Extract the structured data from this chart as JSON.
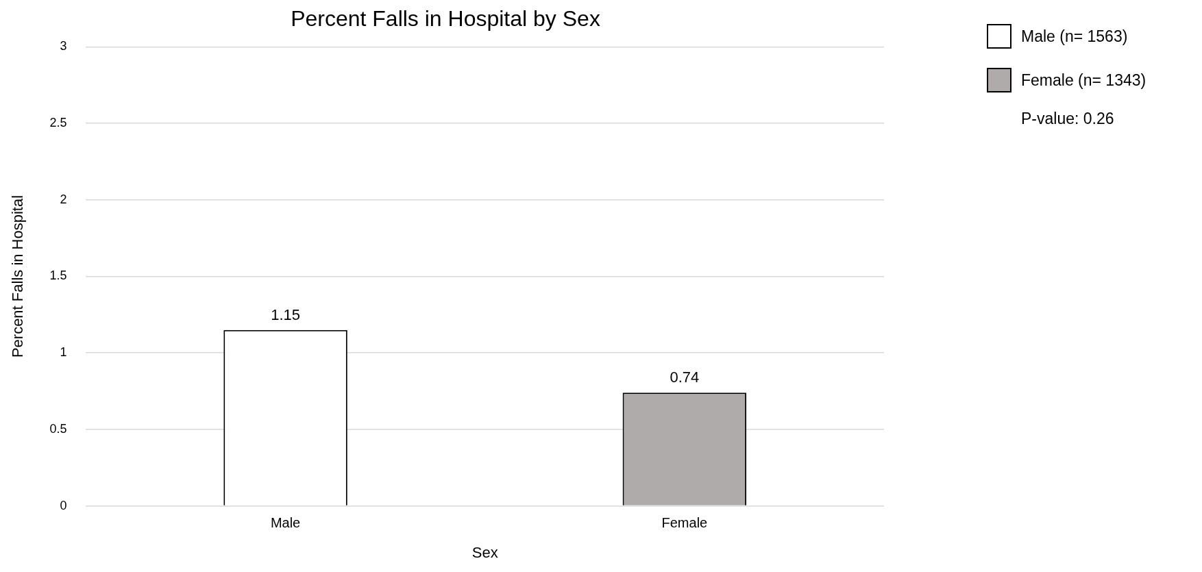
{
  "chart_data": {
    "type": "bar",
    "title": "Percent Falls in Hospital by Sex",
    "xlabel": "Sex",
    "ylabel": "Percent Falls in Hospital",
    "categories": [
      "Male",
      "Female"
    ],
    "series": [
      {
        "name": "Male (n= 1563)",
        "color": "#ffffff",
        "values": [
          1.15,
          null
        ]
      },
      {
        "name": "Female (n= 1343)",
        "color": "#afabab",
        "values": [
          null,
          0.74
        ]
      }
    ],
    "ylim": [
      0,
      3
    ],
    "yticks": [
      0,
      0.5,
      1,
      1.5,
      2,
      2.5,
      3
    ],
    "grid": "y",
    "legend": "top right",
    "data_labels": true,
    "annotations": [
      "P-value: 0.26"
    ]
  }
}
